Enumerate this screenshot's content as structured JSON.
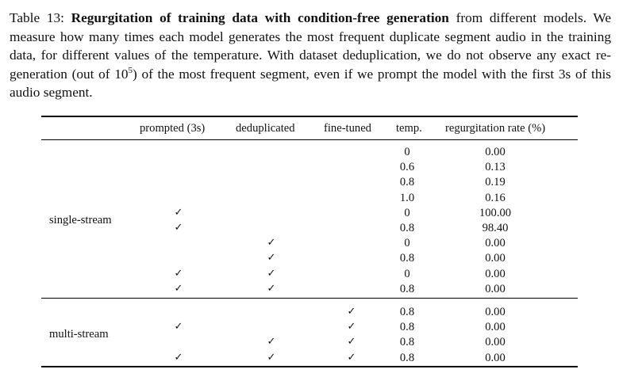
{
  "caption": {
    "label": "Table 13: ",
    "title": "Regurgitation of training data with condition-free generation",
    "text_before_sup": " from different models. We measure how many times each model generates the most frequent duplicate segment audio in the training data, for different values of the temperature. With dataset deduplication, we do not observe any exact re-generation (out of 10",
    "sup": "5",
    "text_after_sup": ") of the most frequent segment, even if we prompt the model with the first 3s of this audio segment."
  },
  "table": {
    "headers": [
      "prompted (3s)",
      "deduplicated",
      "fine-tuned",
      "temp.",
      "regurgitation rate (%)"
    ],
    "check_symbol": "✓",
    "groups": [
      {
        "name": "single-stream",
        "rows": [
          {
            "prompted": "",
            "deduplicated": "",
            "fine_tuned": "",
            "temp": "0",
            "rate": "0.00"
          },
          {
            "prompted": "",
            "deduplicated": "",
            "fine_tuned": "",
            "temp": "0.6",
            "rate": "0.13"
          },
          {
            "prompted": "",
            "deduplicated": "",
            "fine_tuned": "",
            "temp": "0.8",
            "rate": "0.19"
          },
          {
            "prompted": "",
            "deduplicated": "",
            "fine_tuned": "",
            "temp": "1.0",
            "rate": "0.16"
          },
          {
            "prompted": "✓",
            "deduplicated": "",
            "fine_tuned": "",
            "temp": "0",
            "rate": "100.00"
          },
          {
            "prompted": "✓",
            "deduplicated": "",
            "fine_tuned": "",
            "temp": "0.8",
            "rate": "98.40"
          },
          {
            "prompted": "",
            "deduplicated": "✓",
            "fine_tuned": "",
            "temp": "0",
            "rate": "0.00"
          },
          {
            "prompted": "",
            "deduplicated": "✓",
            "fine_tuned": "",
            "temp": "0.8",
            "rate": "0.00"
          },
          {
            "prompted": "✓",
            "deduplicated": "✓",
            "fine_tuned": "",
            "temp": "0",
            "rate": "0.00"
          },
          {
            "prompted": "✓",
            "deduplicated": "✓",
            "fine_tuned": "",
            "temp": "0.8",
            "rate": "0.00"
          }
        ]
      },
      {
        "name": "multi-stream",
        "rows": [
          {
            "prompted": "",
            "deduplicated": "",
            "fine_tuned": "✓",
            "temp": "0.8",
            "rate": "0.00"
          },
          {
            "prompted": "✓",
            "deduplicated": "",
            "fine_tuned": "✓",
            "temp": "0.8",
            "rate": "0.00"
          },
          {
            "prompted": "",
            "deduplicated": "✓",
            "fine_tuned": "✓",
            "temp": "0.8",
            "rate": "0.00"
          },
          {
            "prompted": "✓",
            "deduplicated": "✓",
            "fine_tuned": "✓",
            "temp": "0.8",
            "rate": "0.00"
          }
        ]
      }
    ]
  }
}
